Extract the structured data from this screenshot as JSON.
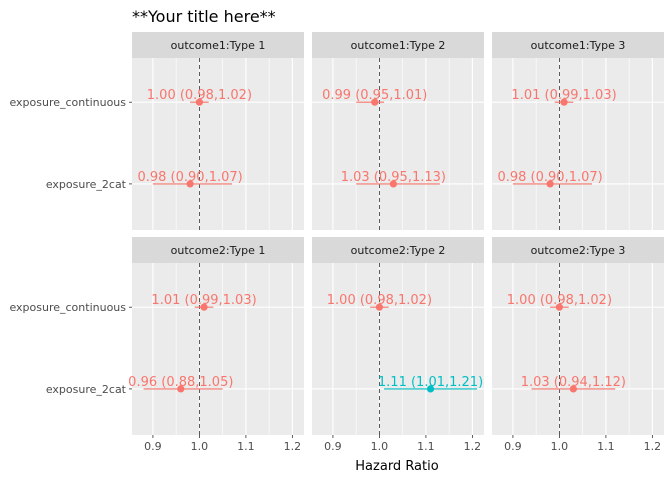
{
  "chart_data": {
    "type": "forest",
    "title": "**Your title here**",
    "xlabel": "Hazard Ratio",
    "ylabel": "",
    "xlim": [
      0.855,
      1.225
    ],
    "xticks": [
      0.9,
      1.0,
      1.1,
      1.2
    ],
    "xtick_labels": [
      "0.9",
      "1.0",
      "1.1",
      "1.2"
    ],
    "reference_line": 1.0,
    "categories": [
      "exposure_continuous",
      "exposure_2cat"
    ],
    "grid": true,
    "colors": {
      "not_significant": "#F8766D",
      "significant": "#00BFC4",
      "panel_bg": "#EBEBEB",
      "strip_bg": "#D9D9D9",
      "grid": "#FFFFFF"
    },
    "facet_rows": [
      "outcome1",
      "outcome2"
    ],
    "facet_cols": [
      "Type 1",
      "Type 2",
      "Type 3"
    ],
    "panels": [
      {
        "strip": "outcome1:Type 1",
        "row": 0,
        "col": 0,
        "points": [
          {
            "category": "exposure_continuous",
            "estimate": 1.0,
            "lower": 0.98,
            "upper": 1.02,
            "label": "1.00 (0.98,1.02)",
            "significant": false
          },
          {
            "category": "exposure_2cat",
            "estimate": 0.98,
            "lower": 0.9,
            "upper": 1.07,
            "label": "0.98 (0.90,1.07)",
            "significant": false
          }
        ]
      },
      {
        "strip": "outcome1:Type 2",
        "row": 0,
        "col": 1,
        "points": [
          {
            "category": "exposure_continuous",
            "estimate": 0.99,
            "lower": 0.95,
            "upper": 1.01,
            "label": "0.99 (0.95,1.01)",
            "significant": false
          },
          {
            "category": "exposure_2cat",
            "estimate": 1.03,
            "lower": 0.95,
            "upper": 1.13,
            "label": "1.03 (0.95,1.13)",
            "significant": false
          }
        ]
      },
      {
        "strip": "outcome1:Type 3",
        "row": 0,
        "col": 2,
        "points": [
          {
            "category": "exposure_continuous",
            "estimate": 1.01,
            "lower": 0.99,
            "upper": 1.03,
            "label": "1.01 (0.99,1.03)",
            "significant": false
          },
          {
            "category": "exposure_2cat",
            "estimate": 0.98,
            "lower": 0.9,
            "upper": 1.07,
            "label": "0.98 (0.90,1.07)",
            "significant": false
          }
        ]
      },
      {
        "strip": "outcome2:Type 1",
        "row": 1,
        "col": 0,
        "points": [
          {
            "category": "exposure_continuous",
            "estimate": 1.01,
            "lower": 0.99,
            "upper": 1.03,
            "label": "1.01 (0.99,1.03)",
            "significant": false
          },
          {
            "category": "exposure_2cat",
            "estimate": 0.96,
            "lower": 0.88,
            "upper": 1.05,
            "label": "0.96 (0.88,1.05)",
            "significant": false
          }
        ]
      },
      {
        "strip": "outcome2:Type 2",
        "row": 1,
        "col": 1,
        "points": [
          {
            "category": "exposure_continuous",
            "estimate": 1.0,
            "lower": 0.98,
            "upper": 1.02,
            "label": "1.00 (0.98,1.02)",
            "significant": false
          },
          {
            "category": "exposure_2cat",
            "estimate": 1.11,
            "lower": 1.01,
            "upper": 1.21,
            "label": "1.11 (1.01,1.21)",
            "significant": true
          }
        ]
      },
      {
        "strip": "outcome2:Type 3",
        "row": 1,
        "col": 2,
        "points": [
          {
            "category": "exposure_continuous",
            "estimate": 1.0,
            "lower": 0.98,
            "upper": 1.02,
            "label": "1.00 (0.98,1.02)",
            "significant": false
          },
          {
            "category": "exposure_2cat",
            "estimate": 1.03,
            "lower": 0.94,
            "upper": 1.12,
            "label": "1.03 (0.94,1.12)",
            "significant": false
          }
        ]
      }
    ]
  }
}
